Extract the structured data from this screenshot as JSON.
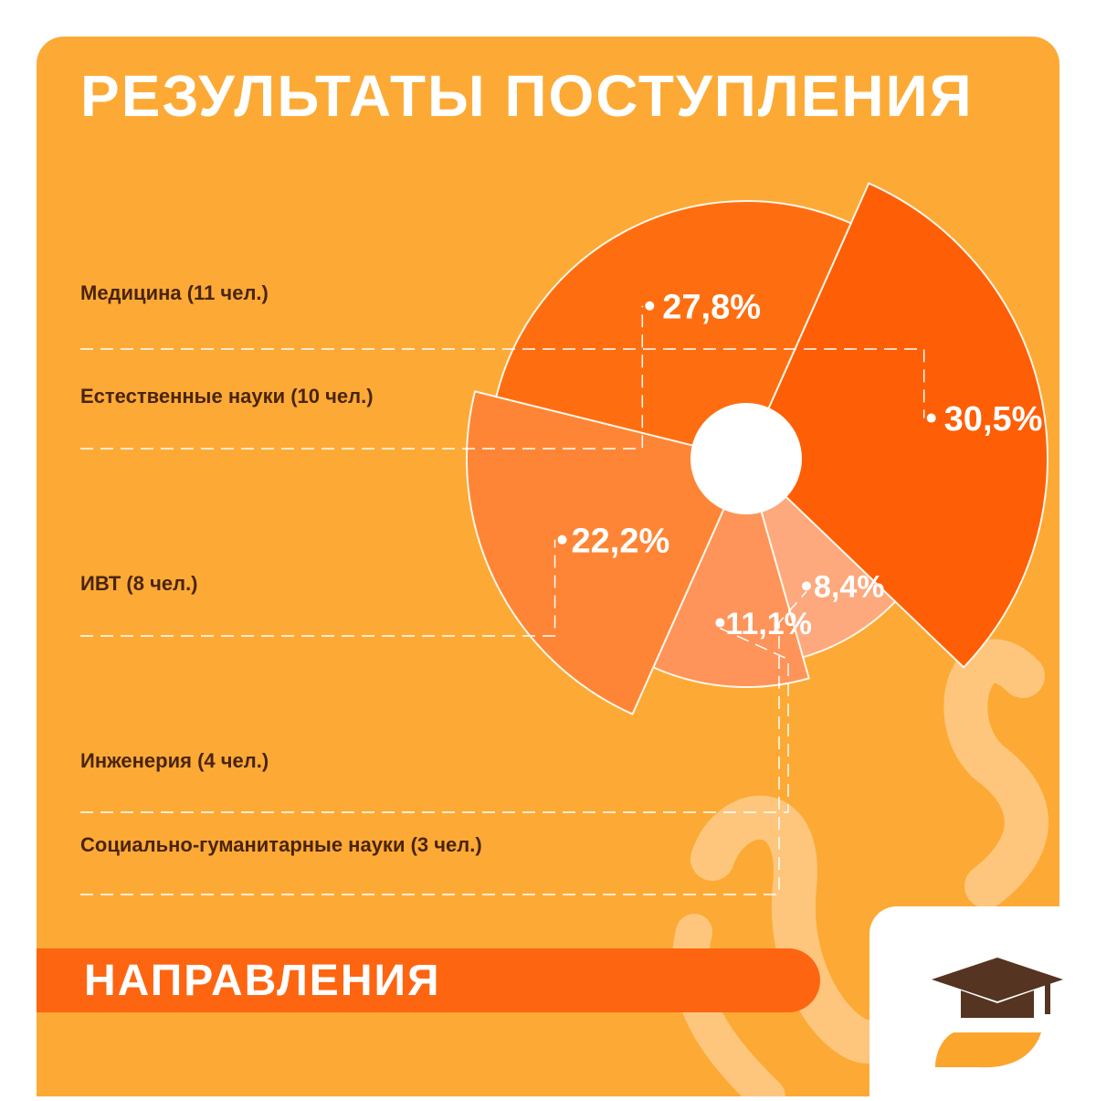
{
  "title": "РЕЗУЛЬТАТЫ ПОСТУПЛЕНИЯ",
  "banner": "НАПРАВЛЕНИЯ",
  "colors": {
    "background": "#fcaa35",
    "accent": "#fe6510",
    "label_text": "#4a2410",
    "logo_cap": "#553421"
  },
  "chart_data": {
    "type": "pie",
    "title": "РЕЗУЛЬТАТЫ ПОСТУПЛЕНИЯ",
    "slices": [
      {
        "label": "Медицина (11 чел.)",
        "count": 11,
        "value": 30.5,
        "value_label": "30,5%",
        "color": "#fe5e06"
      },
      {
        "label": "Социально-гуманитарные науки (3 чел.)",
        "count": 3,
        "value": 8.4,
        "value_label": "8,4%",
        "color": "#fda97d"
      },
      {
        "label": "Инженерия (4 чел.)",
        "count": 4,
        "value": 11.1,
        "value_label": "11,1%",
        "color": "#fe9459"
      },
      {
        "label": "ИВТ (8 чел.)",
        "count": 8,
        "value": 22.2,
        "value_label": "22,2%",
        "color": "#fe8535"
      },
      {
        "label": "Естественные науки (10 чел.)",
        "count": 10,
        "value": 27.8,
        "value_label": "27,8%",
        "color": "#fe6e10"
      }
    ],
    "legend_order": [
      "Медицина (11 чел.)",
      "Естественные науки (10 чел.)",
      "ИВТ (8 чел.)",
      "Инженерия (4 чел.)",
      "Социально-гуманитарные науки (3 чел.)"
    ],
    "legend_placement": "left"
  },
  "logo": {
    "icon": "graduation-cap-icon"
  }
}
